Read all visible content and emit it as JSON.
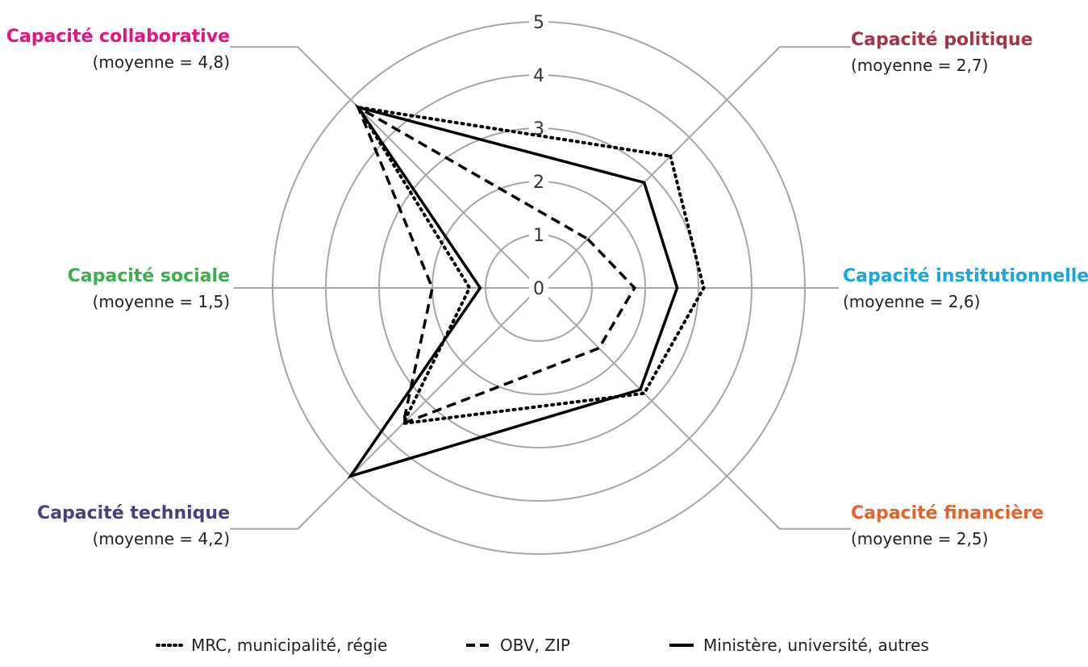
{
  "chart_data": {
    "type": "radar",
    "radial_range": [
      0,
      5
    ],
    "radial_ticks": [
      "0",
      "1",
      "2",
      "3",
      "4",
      "5"
    ],
    "axes": [
      {
        "label": "Capacité politique",
        "sub": "(moyenne = 2,7)",
        "color": "#a3344a"
      },
      {
        "label": "Capacité institutionnelle",
        "sub": "(moyenne = 2,6)",
        "color": "#17a6e0"
      },
      {
        "label": "Capacité financière",
        "sub": "(moyenne = 2,5)",
        "color": "#e2622a"
      },
      {
        "label": "Capacité technique",
        "sub": "(moyenne = 4,2)",
        "color": "#4b3d7e"
      },
      {
        "label": "Capacité sociale",
        "sub": "(moyenne = 1,5)",
        "color": "#3dae49"
      },
      {
        "label": "Capacité collaborative",
        "sub": "(moyenne = 4,8)",
        "color": "#e0157f"
      }
    ],
    "series": [
      {
        "name": "MRC, municipalité, régie",
        "style": "dotted",
        "values": [
          3.5,
          3.1,
          2.8,
          3.6,
          1.3,
          4.8
        ]
      },
      {
        "name": "OBV, ZIP",
        "style": "dashed",
        "values": [
          1.3,
          1.8,
          1.6,
          3.6,
          2.0,
          4.8
        ]
      },
      {
        "name": "Ministère, université, autres",
        "style": "solid",
        "values": [
          2.8,
          2.6,
          2.7,
          5.0,
          1.1,
          4.8
        ]
      }
    ],
    "grid": true,
    "legend_position": "bottom-center"
  }
}
